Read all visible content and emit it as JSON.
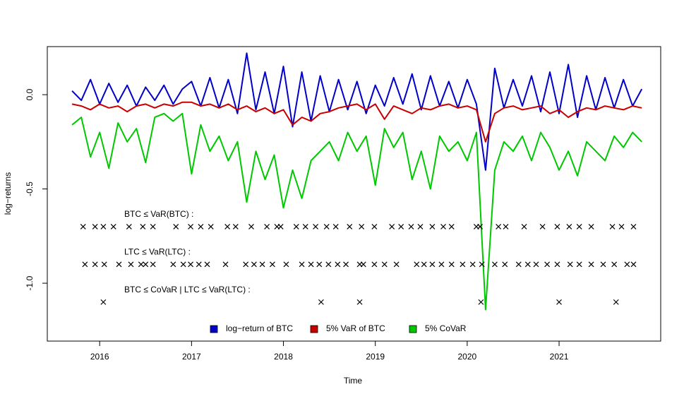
{
  "chart_data": {
    "type": "line",
    "x_label": "Time",
    "y_label": "log−returns",
    "xlim": [
      2015.43,
      2022.106
    ],
    "ylim": [
      -1.307,
      0.255
    ],
    "xticks": [
      2016,
      2017,
      2018,
      2019,
      2020,
      2021
    ],
    "yticks": [
      {
        "value": 0,
        "label": "0.0"
      },
      -0.5,
      {
        "value": -1,
        "label": "-1.0"
      }
    ],
    "legend": "bottom",
    "x": [
      2015.7,
      2015.8,
      2015.9,
      2016.0,
      2016.1,
      2016.2,
      2016.3,
      2016.4,
      2016.5,
      2016.6,
      2016.7,
      2016.8,
      2016.9,
      2017.0,
      2017.1,
      2017.2,
      2017.3,
      2017.4,
      2017.5,
      2017.6,
      2017.7,
      2017.8,
      2017.9,
      2018.0,
      2018.1,
      2018.2,
      2018.3,
      2018.4,
      2018.5,
      2018.6,
      2018.7,
      2018.8,
      2018.9,
      2019.0,
      2019.1,
      2019.2,
      2019.3,
      2019.4,
      2019.5,
      2019.6,
      2019.7,
      2019.8,
      2019.9,
      2020.0,
      2020.1,
      2020.2,
      2020.3,
      2020.4,
      2020.5,
      2020.6,
      2020.7,
      2020.8,
      2020.9,
      2021.0,
      2021.1,
      2021.2,
      2021.3,
      2021.4,
      2021.5,
      2021.6,
      2021.7,
      2021.8,
      2021.9
    ],
    "series": [
      {
        "name": "log−return of BTC",
        "color": "#0000c8",
        "values": [
          0.02,
          -0.03,
          0.08,
          -0.05,
          0.06,
          -0.04,
          0.05,
          -0.06,
          0.04,
          -0.03,
          0.05,
          -0.05,
          0.03,
          0.07,
          -0.06,
          0.09,
          -0.07,
          0.08,
          -0.1,
          0.22,
          -0.08,
          0.12,
          -0.1,
          0.15,
          -0.17,
          0.12,
          -0.14,
          0.1,
          -0.09,
          0.08,
          -0.08,
          0.07,
          -0.1,
          0.05,
          -0.06,
          0.09,
          -0.05,
          0.11,
          -0.08,
          0.1,
          -0.06,
          0.07,
          -0.07,
          0.08,
          -0.05,
          -0.4,
          0.14,
          -0.07,
          0.08,
          -0.06,
          0.1,
          -0.09,
          0.12,
          -0.1,
          0.16,
          -0.12,
          0.1,
          -0.08,
          0.09,
          -0.07,
          0.08,
          -0.06,
          0.03
        ]
      },
      {
        "name": "5% VaR of BTC",
        "color": "#c80000",
        "values": [
          -0.05,
          -0.06,
          -0.08,
          -0.05,
          -0.07,
          -0.06,
          -0.09,
          -0.06,
          -0.05,
          -0.07,
          -0.05,
          -0.06,
          -0.04,
          -0.04,
          -0.06,
          -0.05,
          -0.07,
          -0.05,
          -0.08,
          -0.06,
          -0.09,
          -0.07,
          -0.1,
          -0.08,
          -0.16,
          -0.12,
          -0.14,
          -0.1,
          -0.09,
          -0.07,
          -0.06,
          -0.05,
          -0.08,
          -0.05,
          -0.13,
          -0.06,
          -0.08,
          -0.1,
          -0.07,
          -0.08,
          -0.06,
          -0.05,
          -0.07,
          -0.06,
          -0.08,
          -0.25,
          -0.1,
          -0.07,
          -0.06,
          -0.08,
          -0.07,
          -0.06,
          -0.1,
          -0.08,
          -0.12,
          -0.09,
          -0.07,
          -0.08,
          -0.06,
          -0.07,
          -0.08,
          -0.06,
          -0.07
        ]
      },
      {
        "name": "5% CoVaR",
        "color": "#00c800",
        "values": [
          -0.16,
          -0.12,
          -0.33,
          -0.2,
          -0.39,
          -0.15,
          -0.25,
          -0.18,
          -0.36,
          -0.12,
          -0.1,
          -0.14,
          -0.1,
          -0.42,
          -0.16,
          -0.3,
          -0.22,
          -0.35,
          -0.25,
          -0.57,
          -0.3,
          -0.45,
          -0.32,
          -0.6,
          -0.4,
          -0.55,
          -0.35,
          -0.3,
          -0.25,
          -0.35,
          -0.2,
          -0.3,
          -0.22,
          -0.48,
          -0.18,
          -0.28,
          -0.2,
          -0.45,
          -0.3,
          -0.5,
          -0.22,
          -0.3,
          -0.25,
          -0.35,
          -0.2,
          -1.14,
          -0.4,
          -0.25,
          -0.3,
          -0.22,
          -0.35,
          -0.2,
          -0.28,
          -0.4,
          -0.3,
          -0.43,
          -0.25,
          -0.3,
          -0.35,
          -0.22,
          -0.28,
          -0.2,
          -0.25
        ]
      }
    ],
    "events": [
      {
        "label": "BTC ≤ VaR(BTC) :",
        "level": -0.7,
        "x": [
          2015.82,
          2015.95,
          2016.04,
          2016.15,
          2016.32,
          2016.47,
          2016.58,
          2016.83,
          2016.99,
          2017.1,
          2017.21,
          2017.39,
          2017.48,
          2017.65,
          2017.82,
          2017.93,
          2017.97,
          2018.14,
          2018.24,
          2018.35,
          2018.47,
          2018.57,
          2018.72,
          2018.85,
          2018.99,
          2019.18,
          2019.28,
          2019.39,
          2019.49,
          2019.62,
          2019.74,
          2019.83,
          2020.1,
          2020.14,
          2020.34,
          2020.42,
          2020.62,
          2020.82,
          2020.98,
          2021.11,
          2021.22,
          2021.35,
          2021.58,
          2021.68,
          2021.81
        ]
      },
      {
        "label": "LTC ≤ VaR(LTC) :",
        "level": -0.9,
        "x": [
          2015.84,
          2015.95,
          2016.05,
          2016.21,
          2016.34,
          2016.45,
          2016.5,
          2016.58,
          2016.8,
          2016.91,
          2016.99,
          2017.08,
          2017.17,
          2017.37,
          2017.59,
          2017.68,
          2017.77,
          2017.88,
          2018.03,
          2018.2,
          2018.3,
          2018.39,
          2018.49,
          2018.59,
          2018.68,
          2018.83,
          2018.87,
          2018.99,
          2019.1,
          2019.23,
          2019.45,
          2019.53,
          2019.62,
          2019.72,
          2019.83,
          2019.95,
          2020.06,
          2020.16,
          2020.3,
          2020.41,
          2020.56,
          2020.66,
          2020.75,
          2020.87,
          2020.98,
          2021.12,
          2021.22,
          2021.35,
          2021.48,
          2021.6,
          2021.74,
          2021.81
        ]
      },
      {
        "label": "BTC ≤ CoVaR | LTC ≤ VaR(LTC) :",
        "level": -1.1,
        "x": [
          2016.04,
          2018.41,
          2018.83,
          2020.15,
          2021.0,
          2021.62
        ]
      }
    ]
  }
}
